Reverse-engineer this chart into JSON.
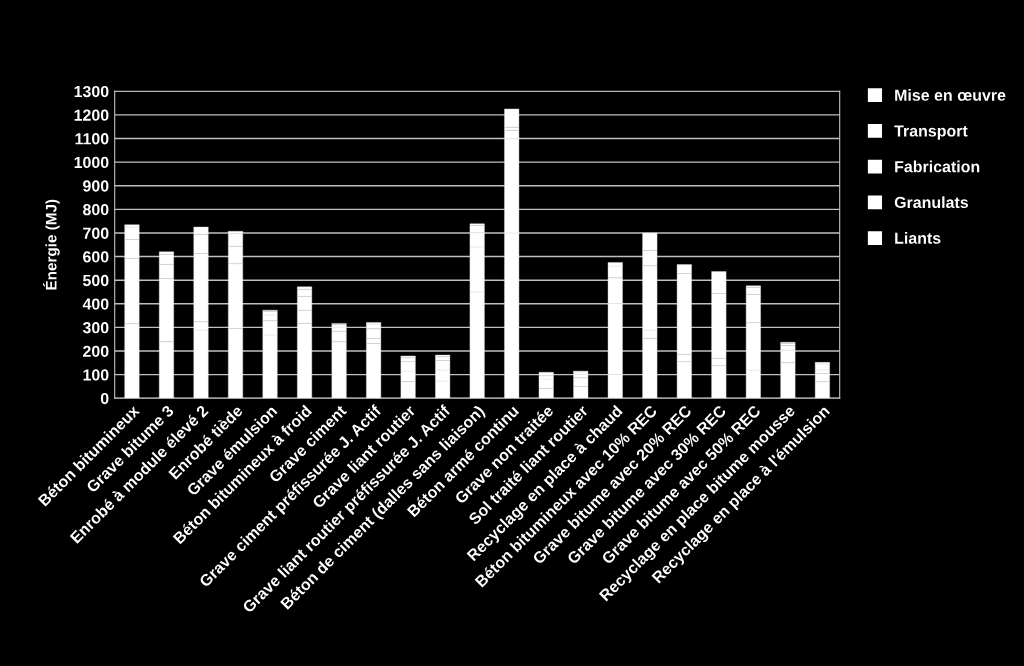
{
  "chart_data": {
    "type": "bar",
    "stacked": true,
    "ylabel": "Énergie (MJ)",
    "categories": [
      "Béton bitumineux",
      "Grave bitume 3",
      "Enrobé à module élevé 2",
      "Enrobé tiède",
      "Grave émulsion",
      "Béton bitumineux à froid",
      "Grave ciment",
      "Grave ciment préfissurée J. Actif",
      "Grave liant routier",
      "Grave liant routier préfissurée J. Actif",
      "Béton de ciment (dalles sans liaison)",
      "Béton armé continu",
      "Grave non traitée",
      "Sol traité liant routier",
      "Recyclage en place à chaud",
      "Béton bitumineux avec 10% REC",
      "Grave bitume avec 20% REC",
      "Grave bitume avec 30% REC",
      "Grave bitume avec 50% REC",
      "Recyclage en place bitume mousse",
      "Recyclage en place à l'émulsion"
    ],
    "series": [
      {
        "name": "Liants",
        "color": "#ffffff",
        "values": [
          317,
          239,
          289,
          296,
          268,
          317,
          239,
          232,
          70,
          73,
          450,
          700,
          0,
          50,
          101,
          254,
          155,
          138,
          120,
          150,
          70
        ]
      },
      {
        "name": "Granulats",
        "color": "#ffffff",
        "values": [
          275,
          268,
          35,
          274,
          60,
          56,
          45,
          22,
          45,
          47,
          191,
          399,
          42,
          37,
          300,
          35,
          31,
          31,
          200,
          54,
          36
        ]
      },
      {
        "name": "Fabrication",
        "color": "#ffffff",
        "values": [
          80,
          60,
          289,
          74,
          25,
          59,
          18,
          40,
          40,
          40,
          60,
          35,
          40,
          15,
          109,
          272,
          342,
          275,
          119,
          19,
          14
        ]
      },
      {
        "name": "Transport",
        "color": "#ffffff",
        "values": [
          53,
          43,
          80,
          53,
          15,
          30,
          10,
          20,
          17,
          16,
          30,
          14,
          13,
          10,
          50,
          66,
          38,
          93,
          30,
          10,
          25
        ]
      },
      {
        "name": "Mise en œuvre",
        "color": "#ffffff",
        "values": [
          10,
          10,
          32,
          10,
          5,
          10,
          5,
          7,
          7,
          7,
          8,
          77,
          15,
          3,
          15,
          73,
          0,
          0,
          7,
          4,
          7
        ]
      }
    ],
    "ylim": [
      0,
      1300
    ],
    "yticks": [
      0,
      100,
      200,
      300,
      400,
      500,
      600,
      700,
      800,
      900,
      1000,
      1100,
      1200,
      1300
    ],
    "grid": "y",
    "legend": "right"
  }
}
